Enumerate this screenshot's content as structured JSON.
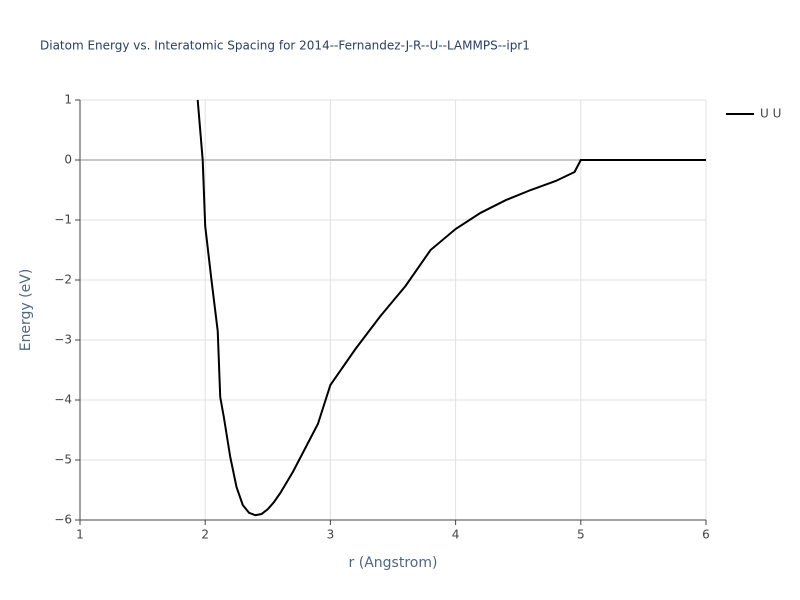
{
  "chart_data": {
    "type": "line",
    "title": "Diatom Energy vs. Interatomic Spacing for 2014--Fernandez-J-R--U--LAMMPS--ipr1",
    "x_label": "r (Angstrom)",
    "y_label": "Energy (eV)",
    "xlim": [
      1,
      6
    ],
    "ylim": [
      -6,
      1
    ],
    "xticks": [
      1,
      2,
      3,
      4,
      5,
      6
    ],
    "yticks": [
      1,
      0,
      {
        "value": -1,
        "label": "−1"
      },
      {
        "value": -2,
        "label": "−2"
      },
      {
        "value": -3,
        "label": "−3"
      },
      {
        "value": -4,
        "label": "−4"
      },
      {
        "value": -5,
        "label": "−5"
      },
      {
        "value": -6,
        "label": "−6"
      }
    ],
    "grid": true,
    "legend": "right",
    "x": [
      1.94,
      1.98,
      2.0,
      2.05,
      2.1,
      2.12,
      2.15,
      2.2,
      2.25,
      2.3,
      2.35,
      2.4,
      2.45,
      2.5,
      2.55,
      2.6,
      2.7,
      2.8,
      2.9,
      3.0,
      3.2,
      3.4,
      3.6,
      3.8,
      4.0,
      4.2,
      4.4,
      4.6,
      4.8,
      4.95,
      5.0,
      6.0
    ],
    "series": [
      {
        "name": "U U",
        "color": "#000000",
        "values": [
          1.0,
          0.0,
          -1.1,
          -2.0,
          -2.85,
          -3.95,
          -4.3,
          -4.95,
          -5.45,
          -5.75,
          -5.88,
          -5.92,
          -5.9,
          -5.82,
          -5.7,
          -5.55,
          -5.2,
          -4.8,
          -4.4,
          -3.75,
          -3.15,
          -2.6,
          -2.1,
          -1.5,
          -1.15,
          -0.88,
          -0.67,
          -0.5,
          -0.35,
          -0.2,
          0.0,
          0.0
        ]
      }
    ]
  }
}
